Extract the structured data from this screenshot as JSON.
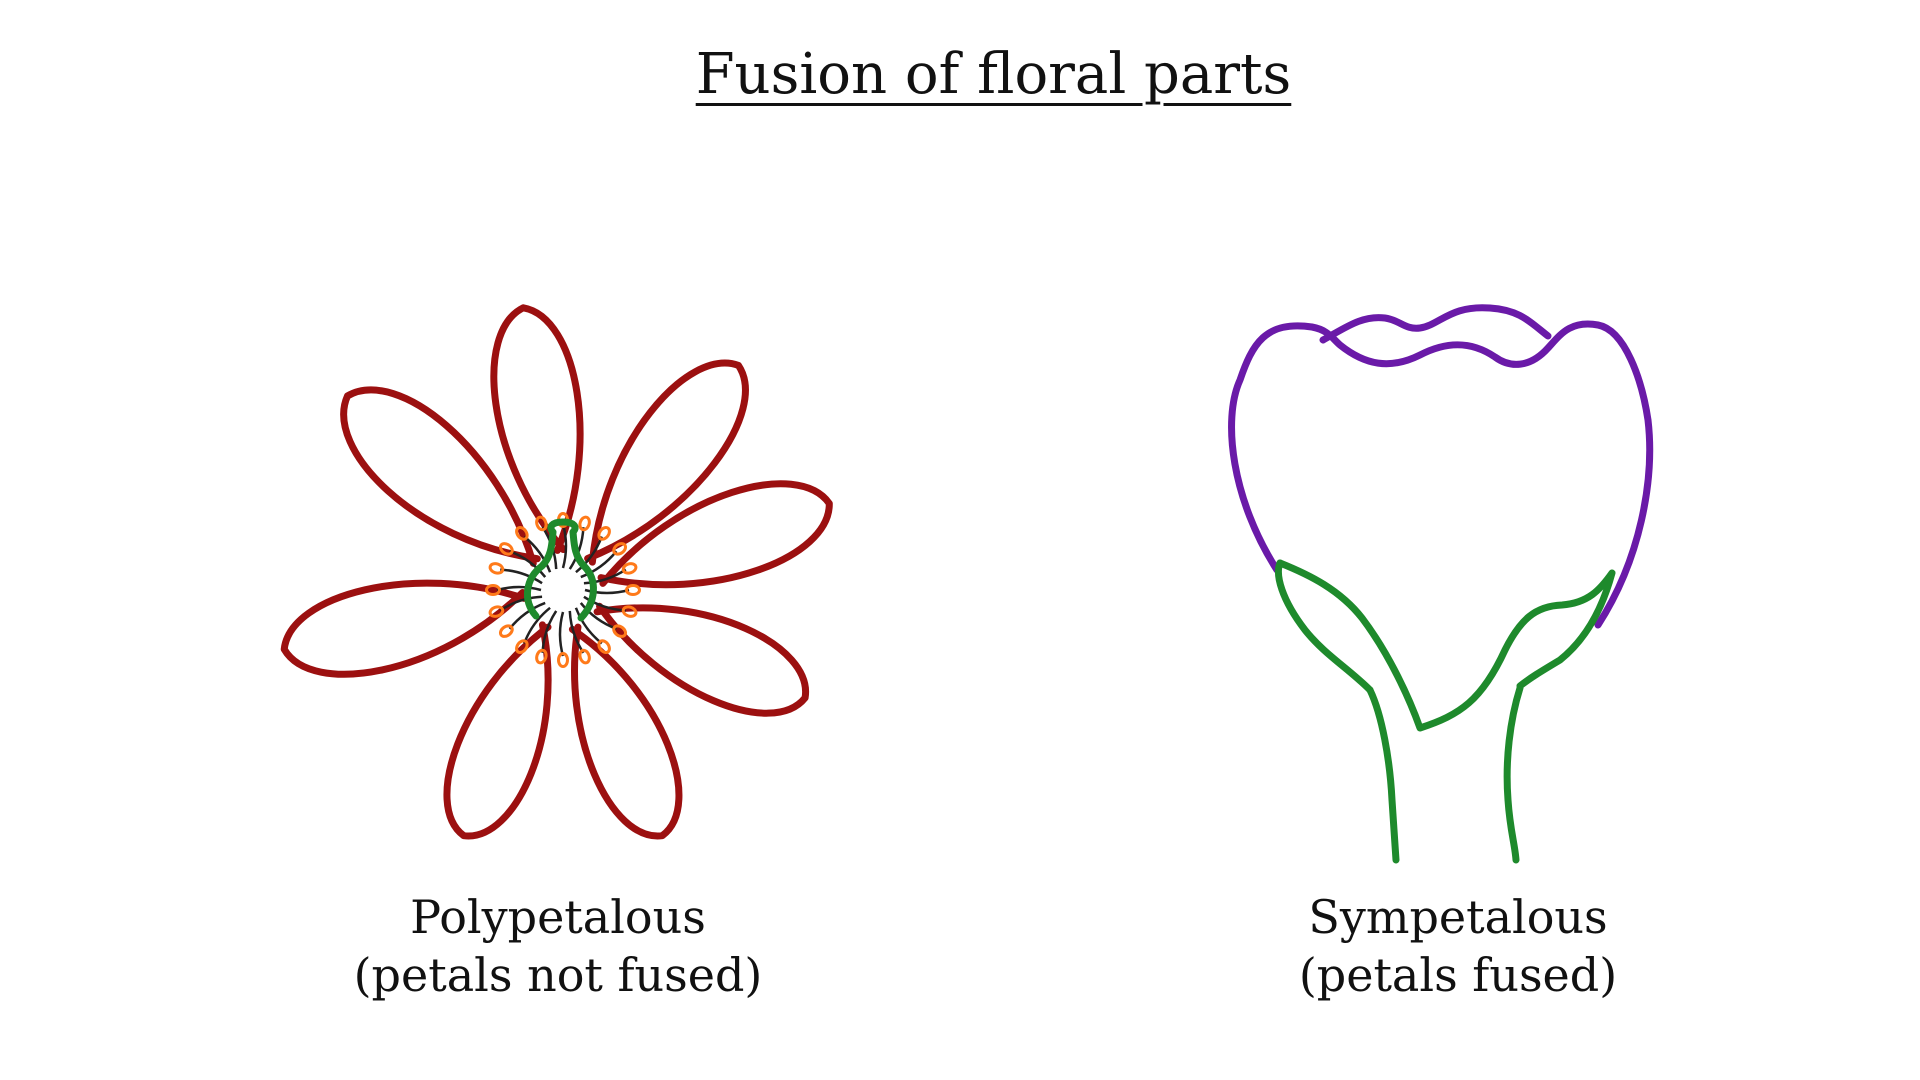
{
  "title": "Fusion of floral parts",
  "colors": {
    "petal_outline": "#9c1010",
    "pistil": "#1e8a2c",
    "stamen_filament": "#222222",
    "anther": "#ff7a1a",
    "corolla": "#6a1aa8",
    "calyx_and_stem": "#1e8a2c"
  },
  "diagrams": [
    {
      "label": "Polypetalous",
      "sublabel": "(petals not fused)"
    },
    {
      "label": "Sympetalous",
      "sublabel": "(petals fused)"
    }
  ]
}
